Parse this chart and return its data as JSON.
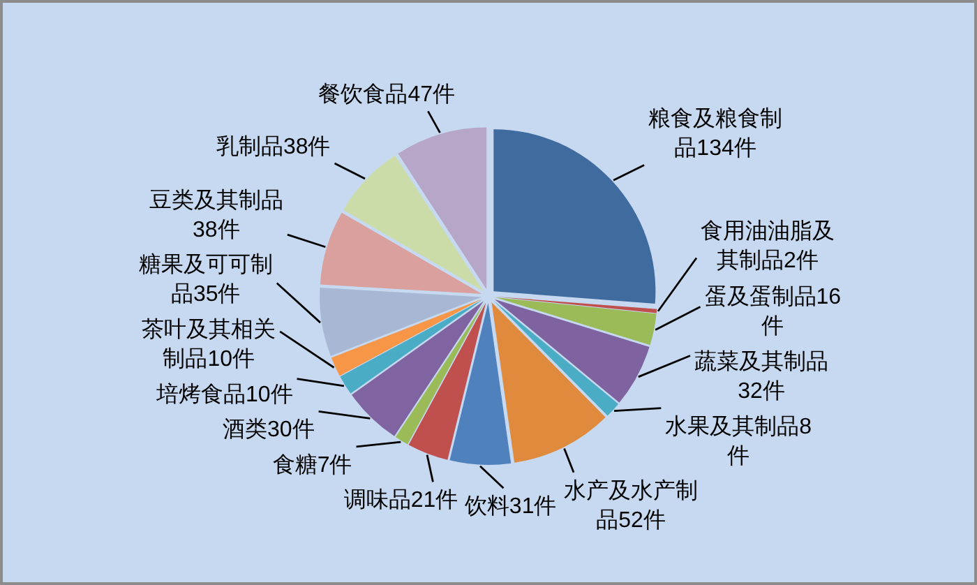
{
  "chart_data": {
    "type": "pie",
    "categories": [
      "粮食及粮食制品",
      "食用油油脂及其制品",
      "蛋及蛋制品",
      "蔬菜及其制品",
      "水果及其制品",
      "水产及水产制品",
      "饮料",
      "调味品",
      "食糖",
      "酒类",
      "培烤食品",
      "茶叶及其相关制品",
      "糖果及可可制品",
      "豆类及其制品",
      "乳制品",
      "餐饮食品"
    ],
    "values": [
      134,
      2,
      16,
      32,
      8,
      52,
      31,
      21,
      7,
      30,
      10,
      10,
      35,
      38,
      38,
      47
    ],
    "value_labels": [
      "134件",
      "2件",
      "16件",
      "32件",
      "8件",
      "52件",
      "31件",
      "21件",
      "7件",
      "30件",
      "10件",
      "10件",
      "35件",
      "38件",
      "38件",
      "47件"
    ],
    "colors": [
      "#3f6b9e",
      "#c0504d",
      "#9bbb59",
      "#7f63a1",
      "#4bacc6",
      "#e08a3e",
      "#4f81bd",
      "#c0504d",
      "#9bbb59",
      "#8064a2",
      "#4bacc6",
      "#f79646",
      "#a8b8d4",
      "#d9a09e",
      "#cbdca8",
      "#b6a6c8"
    ]
  }
}
